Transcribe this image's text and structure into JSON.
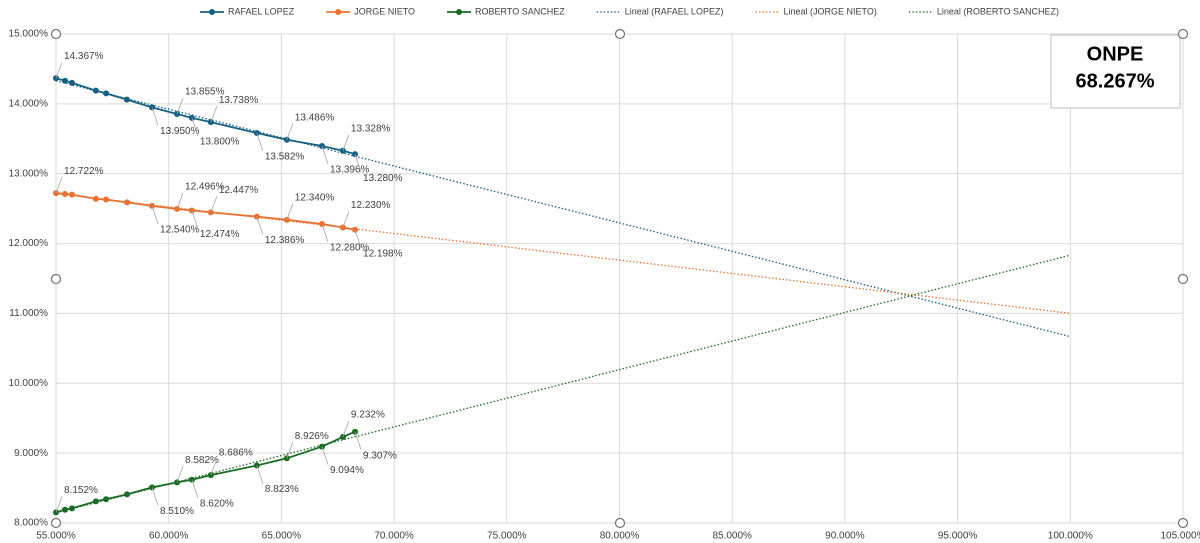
{
  "chart_data": {
    "type": "line",
    "x": [
      55.0,
      55.4,
      55.71,
      56.77,
      57.22,
      58.15,
      59.26,
      60.37,
      61.03,
      61.87,
      63.91,
      65.24,
      66.8,
      67.73,
      68.267
    ],
    "xlim": [
      55,
      105
    ],
    "xticks": [
      {
        "value": 55,
        "label": "55.000%"
      },
      {
        "value": 60,
        "label": "60.000%"
      },
      {
        "value": 65,
        "label": "65.000%"
      },
      {
        "value": 70,
        "label": "70.000%"
      },
      {
        "value": 75,
        "label": "75.000%"
      },
      {
        "value": 80,
        "label": "80.000%"
      },
      {
        "value": 85,
        "label": "85.000%"
      },
      {
        "value": 90,
        "label": "90.000%"
      },
      {
        "value": 95,
        "label": "95.000%"
      },
      {
        "value": 100,
        "label": "100.000%"
      },
      {
        "value": 105,
        "label": "105.000%"
      }
    ],
    "ylim": [
      8,
      15
    ],
    "yticks": [
      {
        "value": 8,
        "label": "8.000%"
      },
      {
        "value": 9,
        "label": "9.000%"
      },
      {
        "value": 10,
        "label": "10.000%"
      },
      {
        "value": 11,
        "label": "11.000%"
      },
      {
        "value": 12,
        "label": "12.000%"
      },
      {
        "value": 13,
        "label": "13.000%"
      },
      {
        "value": 14,
        "label": "14.000%"
      },
      {
        "value": 15,
        "label": "15.000%"
      }
    ],
    "grid": true,
    "legend": "top",
    "series": [
      {
        "name": "RAFAEL LOPEZ",
        "color": "#156082",
        "values": [
          14.367,
          14.33,
          14.3,
          14.19,
          14.15,
          14.06,
          13.95,
          13.855,
          13.8,
          13.738,
          13.582,
          13.486,
          13.396,
          13.328,
          13.28
        ],
        "value_labels": [
          "14.367%",
          null,
          null,
          null,
          null,
          null,
          "13.950%",
          "13.855%",
          "13.800%",
          "13.738%",
          "13.582%",
          "13.486%",
          "13.396%",
          "13.328%",
          "13.280%"
        ],
        "trendline": {
          "name": "Lineal (RAFAEL LOPEZ)",
          "color": "#156082",
          "style": "dotted",
          "x_end": 100
        }
      },
      {
        "name": "JORGE NIETO",
        "color": "#e97132",
        "values": [
          12.722,
          12.71,
          12.7,
          12.64,
          12.63,
          12.59,
          12.54,
          12.496,
          12.474,
          12.447,
          12.386,
          12.34,
          12.28,
          12.23,
          12.198
        ],
        "value_labels": [
          "12.722%",
          null,
          null,
          null,
          null,
          null,
          "12.540%",
          "12.496%",
          "12.474%",
          "12.447%",
          "12.386%",
          "12.340%",
          "12.280%",
          "12.230%",
          "12.198%"
        ],
        "trendline": {
          "name": "Lineal (JORGE NIETO)",
          "color": "#e97132",
          "style": "dotted",
          "x_end": 100
        }
      },
      {
        "name": "ROBERTO SANCHEZ",
        "color": "#196b24",
        "values": [
          8.152,
          8.19,
          8.21,
          8.31,
          8.34,
          8.41,
          8.51,
          8.582,
          8.62,
          8.686,
          8.823,
          8.926,
          9.094,
          9.232,
          9.307
        ],
        "value_labels": [
          "8.152%",
          null,
          null,
          null,
          null,
          null,
          "8.510%",
          "8.582%",
          "8.620%",
          "8.686%",
          "8.823%",
          "8.926%",
          "9.094%",
          "9.232%",
          "9.307%"
        ],
        "trendline": {
          "name": "Lineal (ROBERTO SANCHEZ)",
          "color": "#196b24",
          "style": "dotted",
          "x_end": 100
        }
      }
    ],
    "annotation": {
      "title": "ONPE",
      "text": "68.267%"
    }
  }
}
